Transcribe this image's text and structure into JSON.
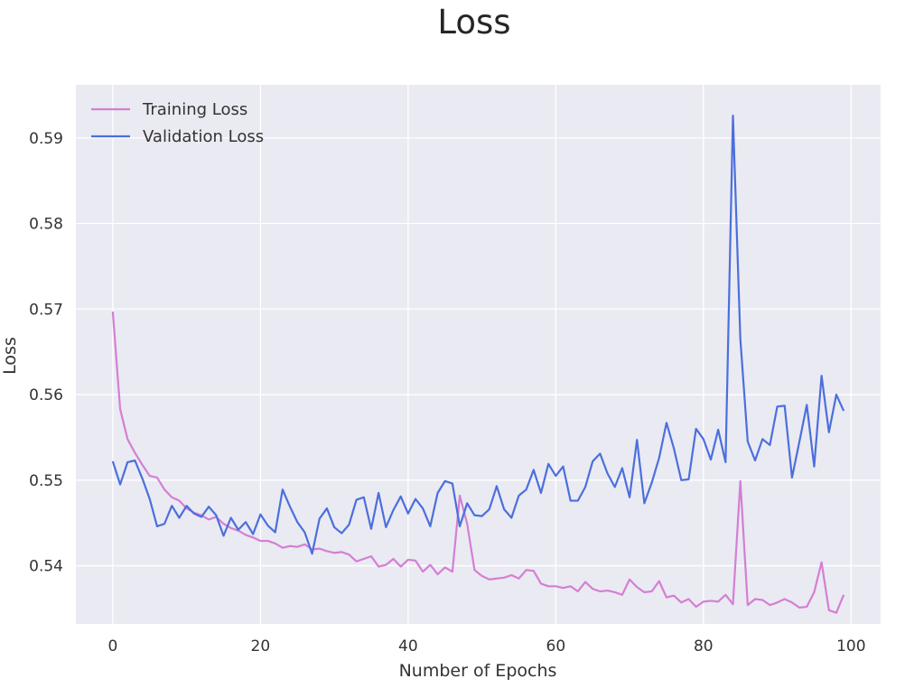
{
  "chart_data": {
    "type": "line",
    "title": "Loss",
    "xlabel": "Number of Epochs",
    "ylabel": "Loss",
    "xlim": [
      -5,
      104
    ],
    "ylim": [
      0.5332,
      0.5962
    ],
    "xticks": [
      0,
      20,
      40,
      60,
      80,
      100
    ],
    "xtick_labels": [
      "0",
      "20",
      "40",
      "60",
      "80",
      "100"
    ],
    "yticks": [
      0.54,
      0.55,
      0.56,
      0.57,
      0.58,
      0.59
    ],
    "ytick_labels": [
      "0.54",
      "0.55",
      "0.56",
      "0.57",
      "0.58",
      "0.59"
    ],
    "grid": true,
    "legend_position": "top-left",
    "background_color": "#eaeaf2",
    "grid_color": "#ffffff",
    "x": [
      0,
      1,
      2,
      3,
      4,
      5,
      6,
      7,
      8,
      9,
      10,
      11,
      12,
      13,
      14,
      15,
      16,
      17,
      18,
      19,
      20,
      21,
      22,
      23,
      24,
      25,
      26,
      27,
      28,
      29,
      30,
      31,
      32,
      33,
      34,
      35,
      36,
      37,
      38,
      39,
      40,
      41,
      42,
      43,
      44,
      45,
      46,
      47,
      48,
      49,
      50,
      51,
      52,
      53,
      54,
      55,
      56,
      57,
      58,
      59,
      60,
      61,
      62,
      63,
      64,
      65,
      66,
      67,
      68,
      69,
      70,
      71,
      72,
      73,
      74,
      75,
      76,
      77,
      78,
      79,
      80,
      81,
      82,
      83,
      84,
      85,
      86,
      87,
      88,
      89,
      90,
      91,
      92,
      93,
      94,
      95,
      96,
      97,
      98,
      99
    ],
    "series": [
      {
        "name": "Training Loss",
        "color": "#d47fd4",
        "values": [
          0.5697,
          0.5583,
          0.5548,
          0.5532,
          0.5518,
          0.5505,
          0.5503,
          0.5489,
          0.548,
          0.5476,
          0.5467,
          0.5462,
          0.5459,
          0.5454,
          0.5457,
          0.5449,
          0.5444,
          0.5441,
          0.5436,
          0.5433,
          0.5429,
          0.5429,
          0.5426,
          0.5421,
          0.5423,
          0.5422,
          0.5425,
          0.5419,
          0.542,
          0.5417,
          0.5415,
          0.5416,
          0.5413,
          0.5405,
          0.5408,
          0.5411,
          0.5399,
          0.5401,
          0.5408,
          0.5399,
          0.5407,
          0.5406,
          0.5393,
          0.5401,
          0.539,
          0.5398,
          0.5393,
          0.5482,
          0.5449,
          0.5395,
          0.5388,
          0.5384,
          0.5385,
          0.5386,
          0.5389,
          0.5385,
          0.5395,
          0.5394,
          0.5379,
          0.5376,
          0.5376,
          0.5374,
          0.5376,
          0.537,
          0.5381,
          0.5373,
          0.537,
          0.5371,
          0.5369,
          0.5366,
          0.5384,
          0.5375,
          0.5369,
          0.537,
          0.5382,
          0.5363,
          0.5365,
          0.5357,
          0.5361,
          0.5352,
          0.5358,
          0.5359,
          0.5358,
          0.5366,
          0.5355,
          0.5499,
          0.5354,
          0.5361,
          0.536,
          0.5354,
          0.5357,
          0.5361,
          0.5357,
          0.5351,
          0.5352,
          0.5369,
          0.5404,
          0.5348,
          0.5345,
          0.5366
        ]
      },
      {
        "name": "Validation Loss",
        "color": "#4c6fdd",
        "values": [
          0.5522,
          0.5495,
          0.5521,
          0.5523,
          0.5502,
          0.5478,
          0.5446,
          0.5449,
          0.547,
          0.5456,
          0.547,
          0.5461,
          0.5457,
          0.5469,
          0.5459,
          0.5435,
          0.5456,
          0.5442,
          0.5451,
          0.5437,
          0.546,
          0.5447,
          0.5439,
          0.5489,
          0.5469,
          0.5451,
          0.5439,
          0.5414,
          0.5455,
          0.5467,
          0.5445,
          0.5438,
          0.5448,
          0.5477,
          0.548,
          0.5443,
          0.5485,
          0.5445,
          0.5465,
          0.5481,
          0.5461,
          0.5478,
          0.5467,
          0.5446,
          0.5485,
          0.5499,
          0.5496,
          0.5446,
          0.5473,
          0.5459,
          0.5458,
          0.5466,
          0.5493,
          0.5466,
          0.5456,
          0.5482,
          0.5489,
          0.5512,
          0.5485,
          0.5519,
          0.5505,
          0.5516,
          0.5476,
          0.5476,
          0.5492,
          0.5522,
          0.5531,
          0.5508,
          0.5492,
          0.5514,
          0.548,
          0.5547,
          0.5473,
          0.5497,
          0.5526,
          0.5567,
          0.5537,
          0.55,
          0.5501,
          0.556,
          0.5548,
          0.5524,
          0.5559,
          0.5521,
          0.5926,
          0.5665,
          0.5545,
          0.5523,
          0.5548,
          0.5541,
          0.5586,
          0.5587,
          0.5503,
          0.5545,
          0.5588,
          0.5516,
          0.5622,
          0.5556,
          0.56,
          0.5581
        ]
      }
    ]
  }
}
